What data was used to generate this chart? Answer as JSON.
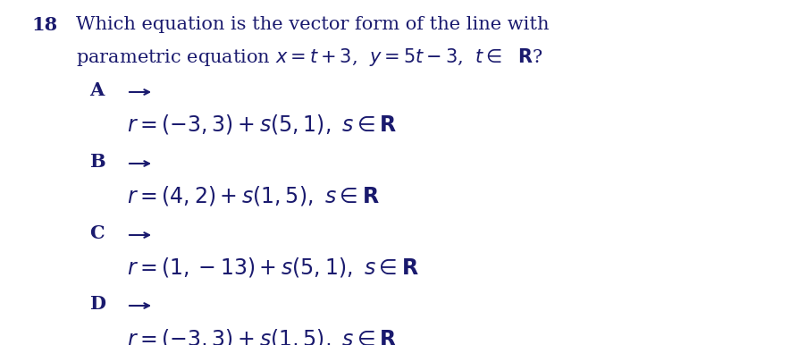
{
  "background_color": "#ffffff",
  "text_color": "#1a1a6e",
  "question_number": "18",
  "question_line1": "Which equation is the vector form of the line with",
  "question_line2": "parametric equation $x = t + 3$,  $y = 5t - 3$,  $t \\in$  $\\mathbf{R}$?",
  "options": [
    {
      "label": "A",
      "formula": "$r = \\left(-3, 3\\right) + s\\left(5, 1\\right),\\ s \\in \\mathbf{R}$"
    },
    {
      "label": "B",
      "formula": "$r = \\left(4, 2\\right) + s\\left(1, 5\\right),\\ s \\in \\mathbf{R}$"
    },
    {
      "label": "C",
      "formula": "$r = \\left(1, -13\\right) + s\\left(5, 1\\right),\\ s \\in \\mathbf{R}$"
    },
    {
      "label": "D",
      "formula": "$r = \\left(-3, 3\\right) + s\\left(1, 5\\right),\\ s \\in \\mathbf{R}$"
    }
  ],
  "qnum_fontsize": 15,
  "question_fontsize": 15,
  "label_fontsize": 15,
  "formula_fontsize": 17
}
